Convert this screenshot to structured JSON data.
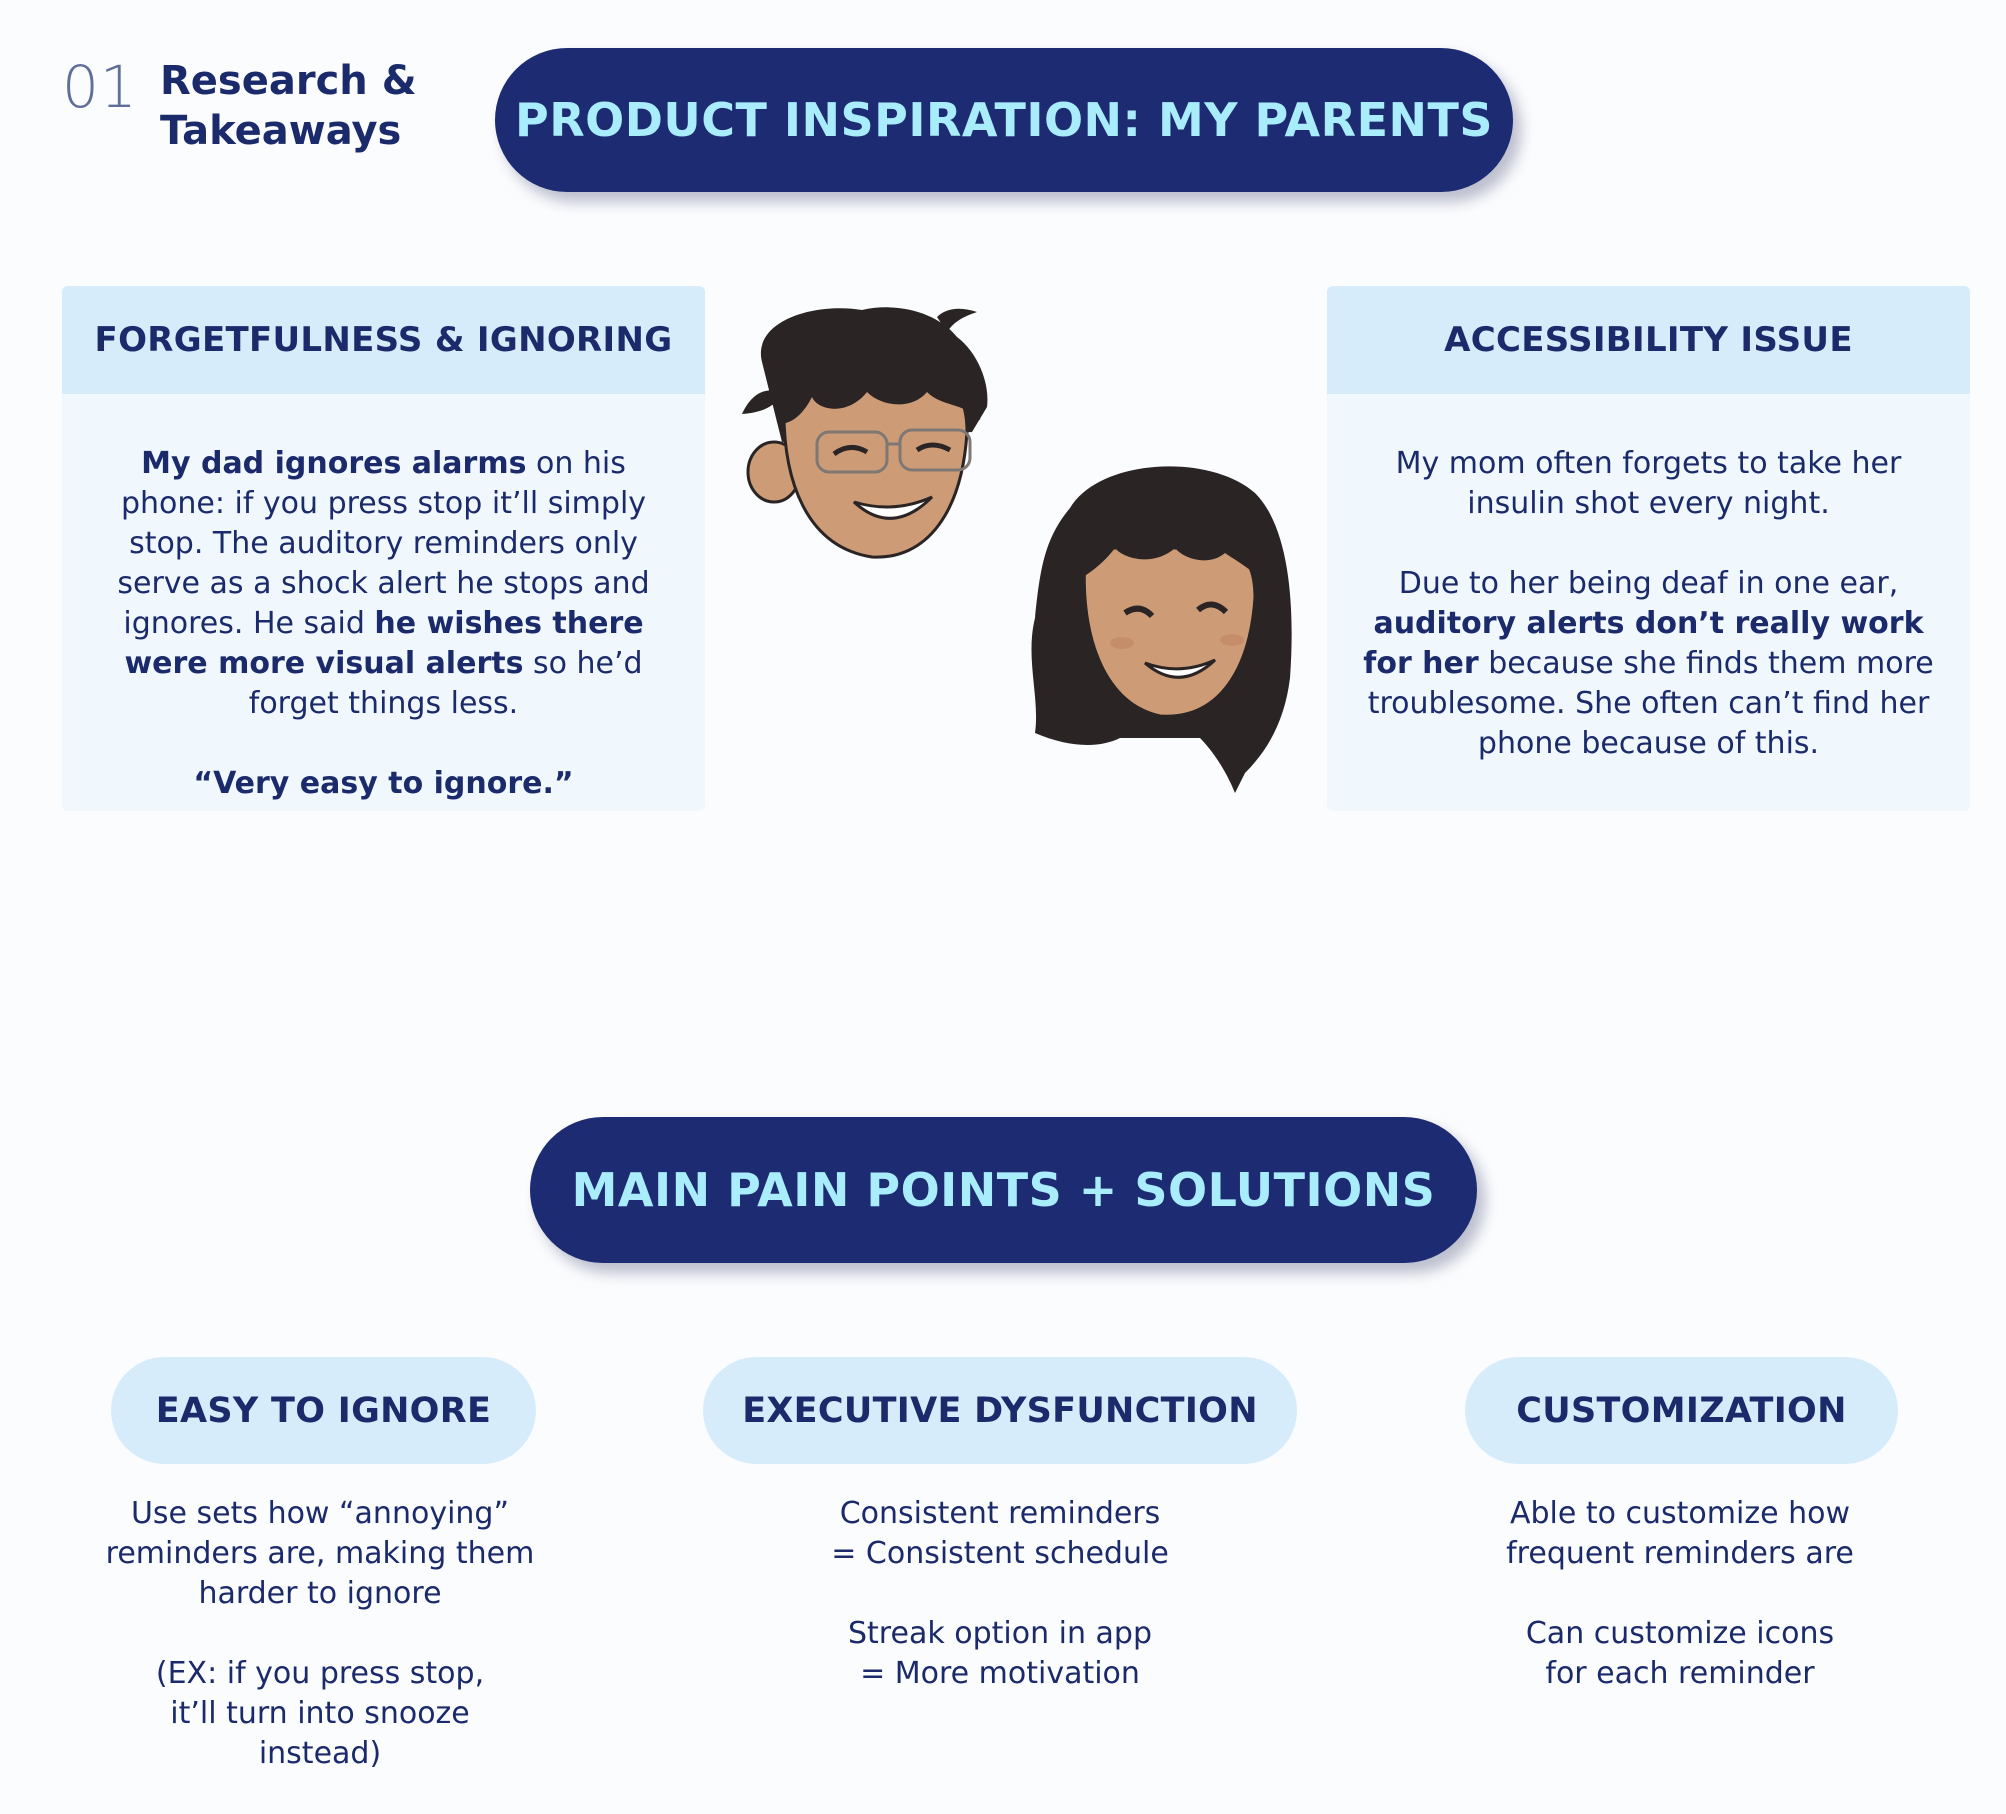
{
  "header": {
    "section_number": "01",
    "section_title": "Research & Takeaways"
  },
  "inspiration": {
    "title": "PRODUCT INSPIRATION: MY PARENTS",
    "left_card": {
      "title": "FORGETFULNESS & IGNORING",
      "p1_b1": "My dad ignores alarms",
      "p1_t1": " on his phone: if you press stop it’ll simply stop. The auditory reminders only serve as a shock alert he stops and ignores. He said ",
      "p1_b2": "he wishes there were more visual alerts",
      "p1_t2": " so he’d forget things less.",
      "quote": "“Very easy to ignore.”"
    },
    "right_card": {
      "title": "ACCESSIBILITY ISSUE",
      "p1": "My mom often forgets to take her insulin shot every night.",
      "p2_t1": "Due to her being deaf in one ear, ",
      "p2_b1": "auditory alerts don’t really work for her",
      "p2_t2": " because she finds them more troublesome. She often can’t find her phone because of this."
    }
  },
  "pain_points": {
    "title": "MAIN PAIN POINTS + SOLUTIONS",
    "items": [
      {
        "label": "EASY TO IGNORE",
        "line1": "Use sets how “annoying” reminders are, making them harder to ignore",
        "line2": "(EX: if you press stop, it’ll turn into snooze instead)"
      },
      {
        "label": "EXECUTIVE DYSFUNCTION",
        "line1a": "Consistent reminders",
        "line1b": "= Consistent schedule",
        "line2a": "Streak option in app",
        "line2b": "= More motivation"
      },
      {
        "label": "CUSTOMIZATION",
        "line1": "Able to customize how frequent reminders are",
        "line2": "Can customize icons for each reminder"
      }
    ]
  },
  "colors": {
    "navy": "#1d2c72",
    "pill_text": "#a9ecfc",
    "light_blue": "#d7ecfb",
    "card_bg": "#f0f8fe"
  }
}
